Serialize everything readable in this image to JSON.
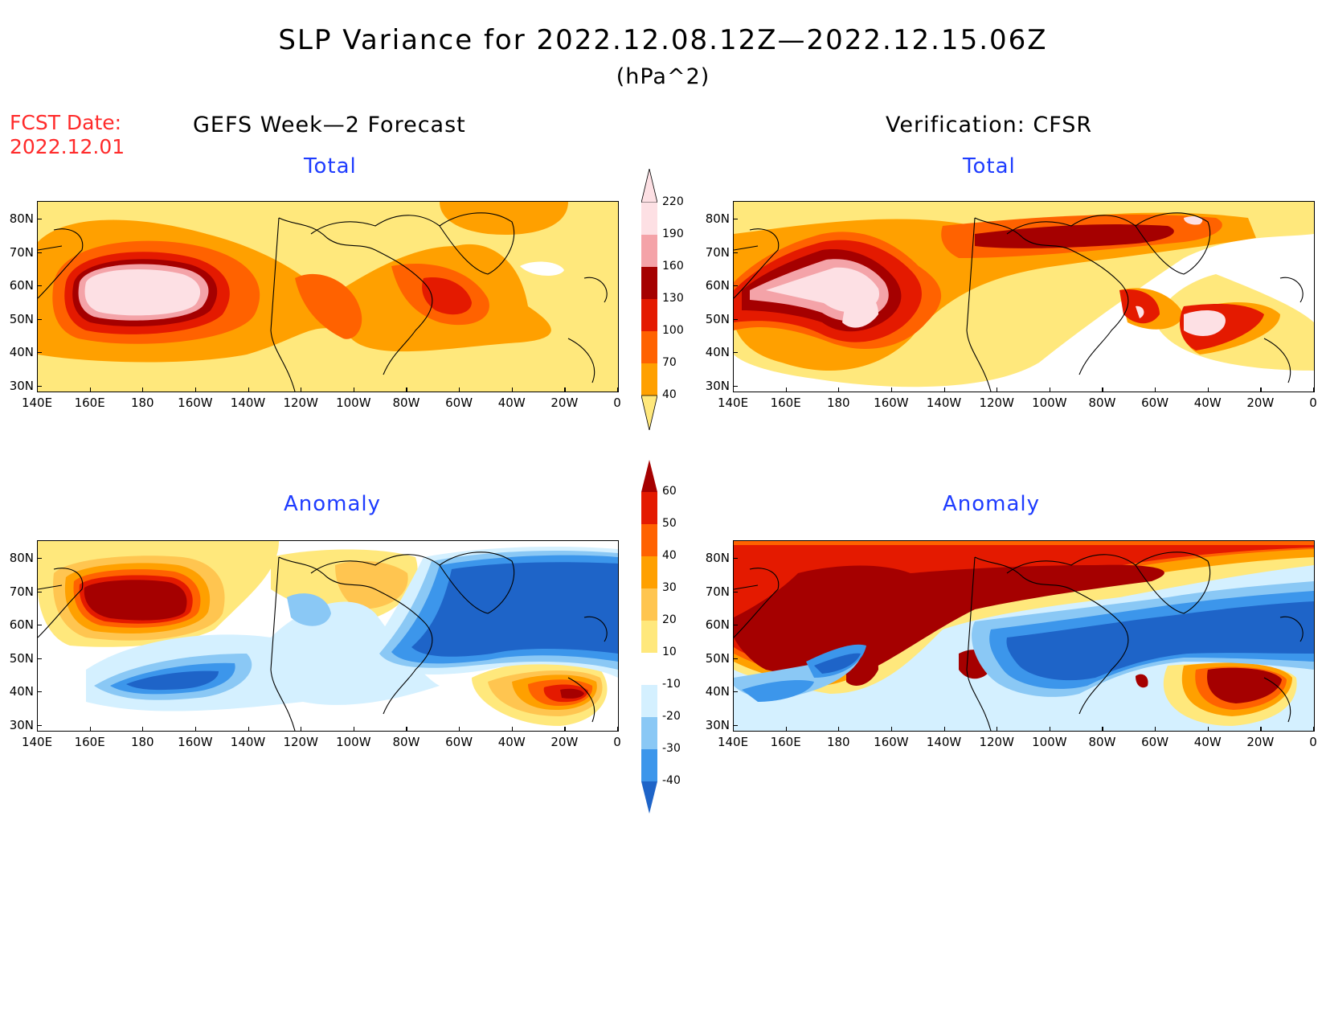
{
  "header": {
    "title": "SLP Variance for 2022.12.08.12Z—2022.12.15.06Z",
    "units": "(hPa^2)",
    "fcst_line1": "FCST Date:",
    "fcst_line2": "2022.12.01"
  },
  "columns": {
    "left": "GEFS Week—2 Forecast",
    "right": "Verification: CFSR"
  },
  "panels": {
    "total": "Total",
    "anomaly": "Anomaly"
  },
  "axes": {
    "lat_labels": [
      "80N",
      "70N",
      "60N",
      "50N",
      "40N",
      "30N"
    ],
    "lon_labels": [
      "140E",
      "160E",
      "180",
      "160W",
      "140W",
      "120W",
      "100W",
      "80W",
      "60W",
      "40W",
      "20W",
      "0"
    ]
  },
  "colorbars": {
    "total": {
      "levels": [
        "40",
        "70",
        "100",
        "130",
        "160",
        "190",
        "220"
      ],
      "colors": [
        "#ffe87c",
        "#ffa000",
        "#ff6200",
        "#e41a00",
        "#a50000",
        "#f4a3a8",
        "#fde0e4"
      ]
    },
    "anomaly": {
      "levels": [
        "60",
        "50",
        "40",
        "30",
        "20",
        "10",
        "-10",
        "-20",
        "-30",
        "-40"
      ],
      "colors": [
        "#a50000",
        "#e41a00",
        "#ff6200",
        "#ffa000",
        "#ffc550",
        "#ffe87c",
        "#ffffff",
        "#d4f0ff",
        "#8ac8f5",
        "#3c96eb",
        "#1e64c8"
      ]
    }
  },
  "colors": {
    "title_red": "#ff2a2a",
    "panel_blue": "#1e3cff"
  }
}
